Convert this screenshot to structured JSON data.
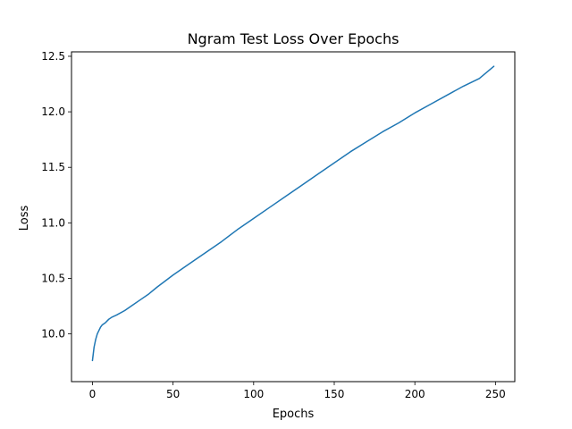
{
  "chart_data": {
    "type": "line",
    "title": "Ngram Test Loss Over Epochs",
    "xlabel": "Epochs",
    "ylabel": "Loss",
    "xlim": [
      -13,
      262
    ],
    "ylim": [
      9.57,
      12.54
    ],
    "xticks": [
      0,
      50,
      100,
      150,
      200,
      250
    ],
    "yticks": [
      10.0,
      10.5,
      11.0,
      11.5,
      12.0,
      12.5
    ],
    "ytick_labels": [
      "10.0",
      "10.5",
      "11.0",
      "11.5",
      "12.0",
      "12.5"
    ],
    "grid": false,
    "series": [
      {
        "color": "#1f77b4",
        "x": [
          0,
          1,
          2,
          3,
          4,
          5,
          6,
          7,
          8,
          10,
          12,
          15,
          20,
          25,
          30,
          35,
          40,
          50,
          60,
          70,
          80,
          90,
          100,
          110,
          120,
          130,
          140,
          150,
          160,
          170,
          180,
          190,
          200,
          210,
          220,
          230,
          240,
          249
        ],
        "y": [
          9.76,
          9.88,
          9.95,
          10.0,
          10.03,
          10.06,
          10.08,
          10.09,
          10.1,
          10.13,
          10.15,
          10.17,
          10.21,
          10.26,
          10.31,
          10.36,
          10.42,
          10.53,
          10.63,
          10.73,
          10.83,
          10.94,
          11.04,
          11.14,
          11.24,
          11.34,
          11.44,
          11.54,
          11.64,
          11.73,
          11.82,
          11.9,
          11.99,
          12.07,
          12.15,
          12.23,
          12.3,
          12.41
        ]
      }
    ]
  }
}
